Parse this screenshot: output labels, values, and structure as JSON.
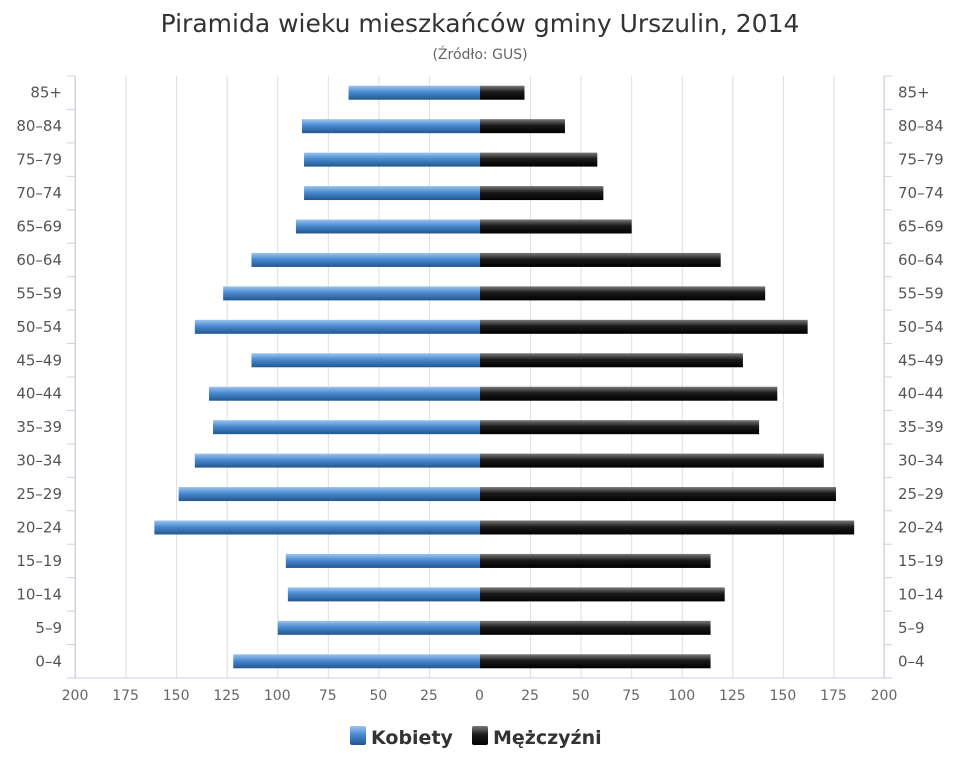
{
  "chart_data": {
    "type": "bar",
    "orientation": "horizontal",
    "layout": "population-pyramid",
    "title": "Piramida wieku mieszkańców gminy Urszulin, 2014",
    "subtitle": "(Źródło: GUS)",
    "categories": [
      "0-4",
      "5-9",
      "10-14",
      "15-19",
      "20-24",
      "25-29",
      "30-34",
      "35-39",
      "40-44",
      "45-49",
      "50-54",
      "55-59",
      "60-64",
      "65-69",
      "70-74",
      "75-79",
      "80-84",
      "85+"
    ],
    "series": [
      {
        "name": "Kobiety",
        "side": "left",
        "color": "#4a8ad0",
        "values": [
          122,
          100,
          95,
          96,
          161,
          149,
          141,
          132,
          134,
          113,
          141,
          127,
          113,
          91,
          87,
          87,
          88,
          65
        ]
      },
      {
        "name": "Mężczyźni",
        "side": "right",
        "color": "#1a1a1a",
        "values": [
          114,
          114,
          121,
          114,
          185,
          176,
          170,
          138,
          147,
          130,
          162,
          141,
          119,
          75,
          61,
          58,
          42,
          22
        ]
      }
    ],
    "x_ticks": [
      "200",
      "175",
      "150",
      "125",
      "100",
      "75",
      "50",
      "25",
      "0",
      "25",
      "50",
      "75",
      "100",
      "125",
      "150",
      "175",
      "200"
    ],
    "xlim": [
      -200,
      200
    ],
    "grid": true,
    "legend": "bottom-center"
  }
}
